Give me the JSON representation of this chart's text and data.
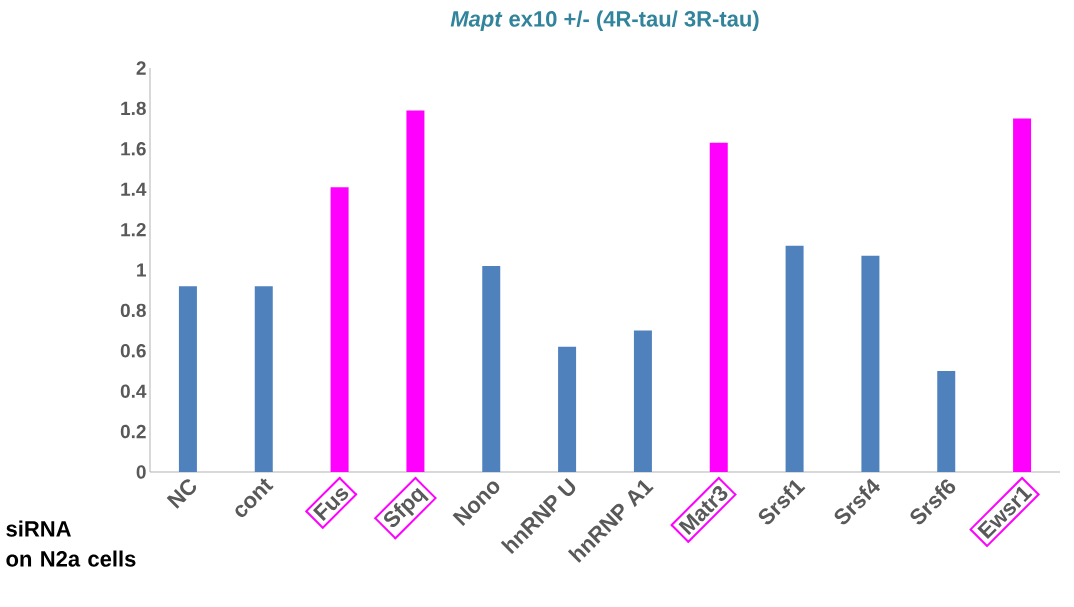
{
  "chart_data": {
    "type": "bar",
    "title": "*Mapt* ex10 +/-  (4R-tau/ 3R-tau)",
    "xlabel": "siRNA\non N2a cells",
    "categories": [
      "NC",
      "cont",
      "Fus",
      "Sfpq",
      "Nono",
      "hnRNP U",
      "hnRNP A1",
      "Matr3",
      "Srsf1",
      "Srsf4",
      "Srsf6",
      "Ewsr1"
    ],
    "values": [
      0.92,
      0.92,
      1.41,
      1.79,
      1.02,
      0.62,
      0.7,
      1.63,
      1.12,
      1.07,
      0.5,
      1.75
    ],
    "colors": [
      "#4f81bd",
      "#4f81bd",
      "#ff00ff",
      "#ff00ff",
      "#4f81bd",
      "#4f81bd",
      "#4f81bd",
      "#ff00ff",
      "#4f81bd",
      "#4f81bd",
      "#4f81bd",
      "#ff00ff"
    ],
    "ylim": [
      0,
      2
    ],
    "yticks": [
      0,
      0.2,
      0.4,
      0.6,
      0.8,
      1,
      1.2,
      1.4,
      1.6,
      1.8,
      2
    ]
  }
}
